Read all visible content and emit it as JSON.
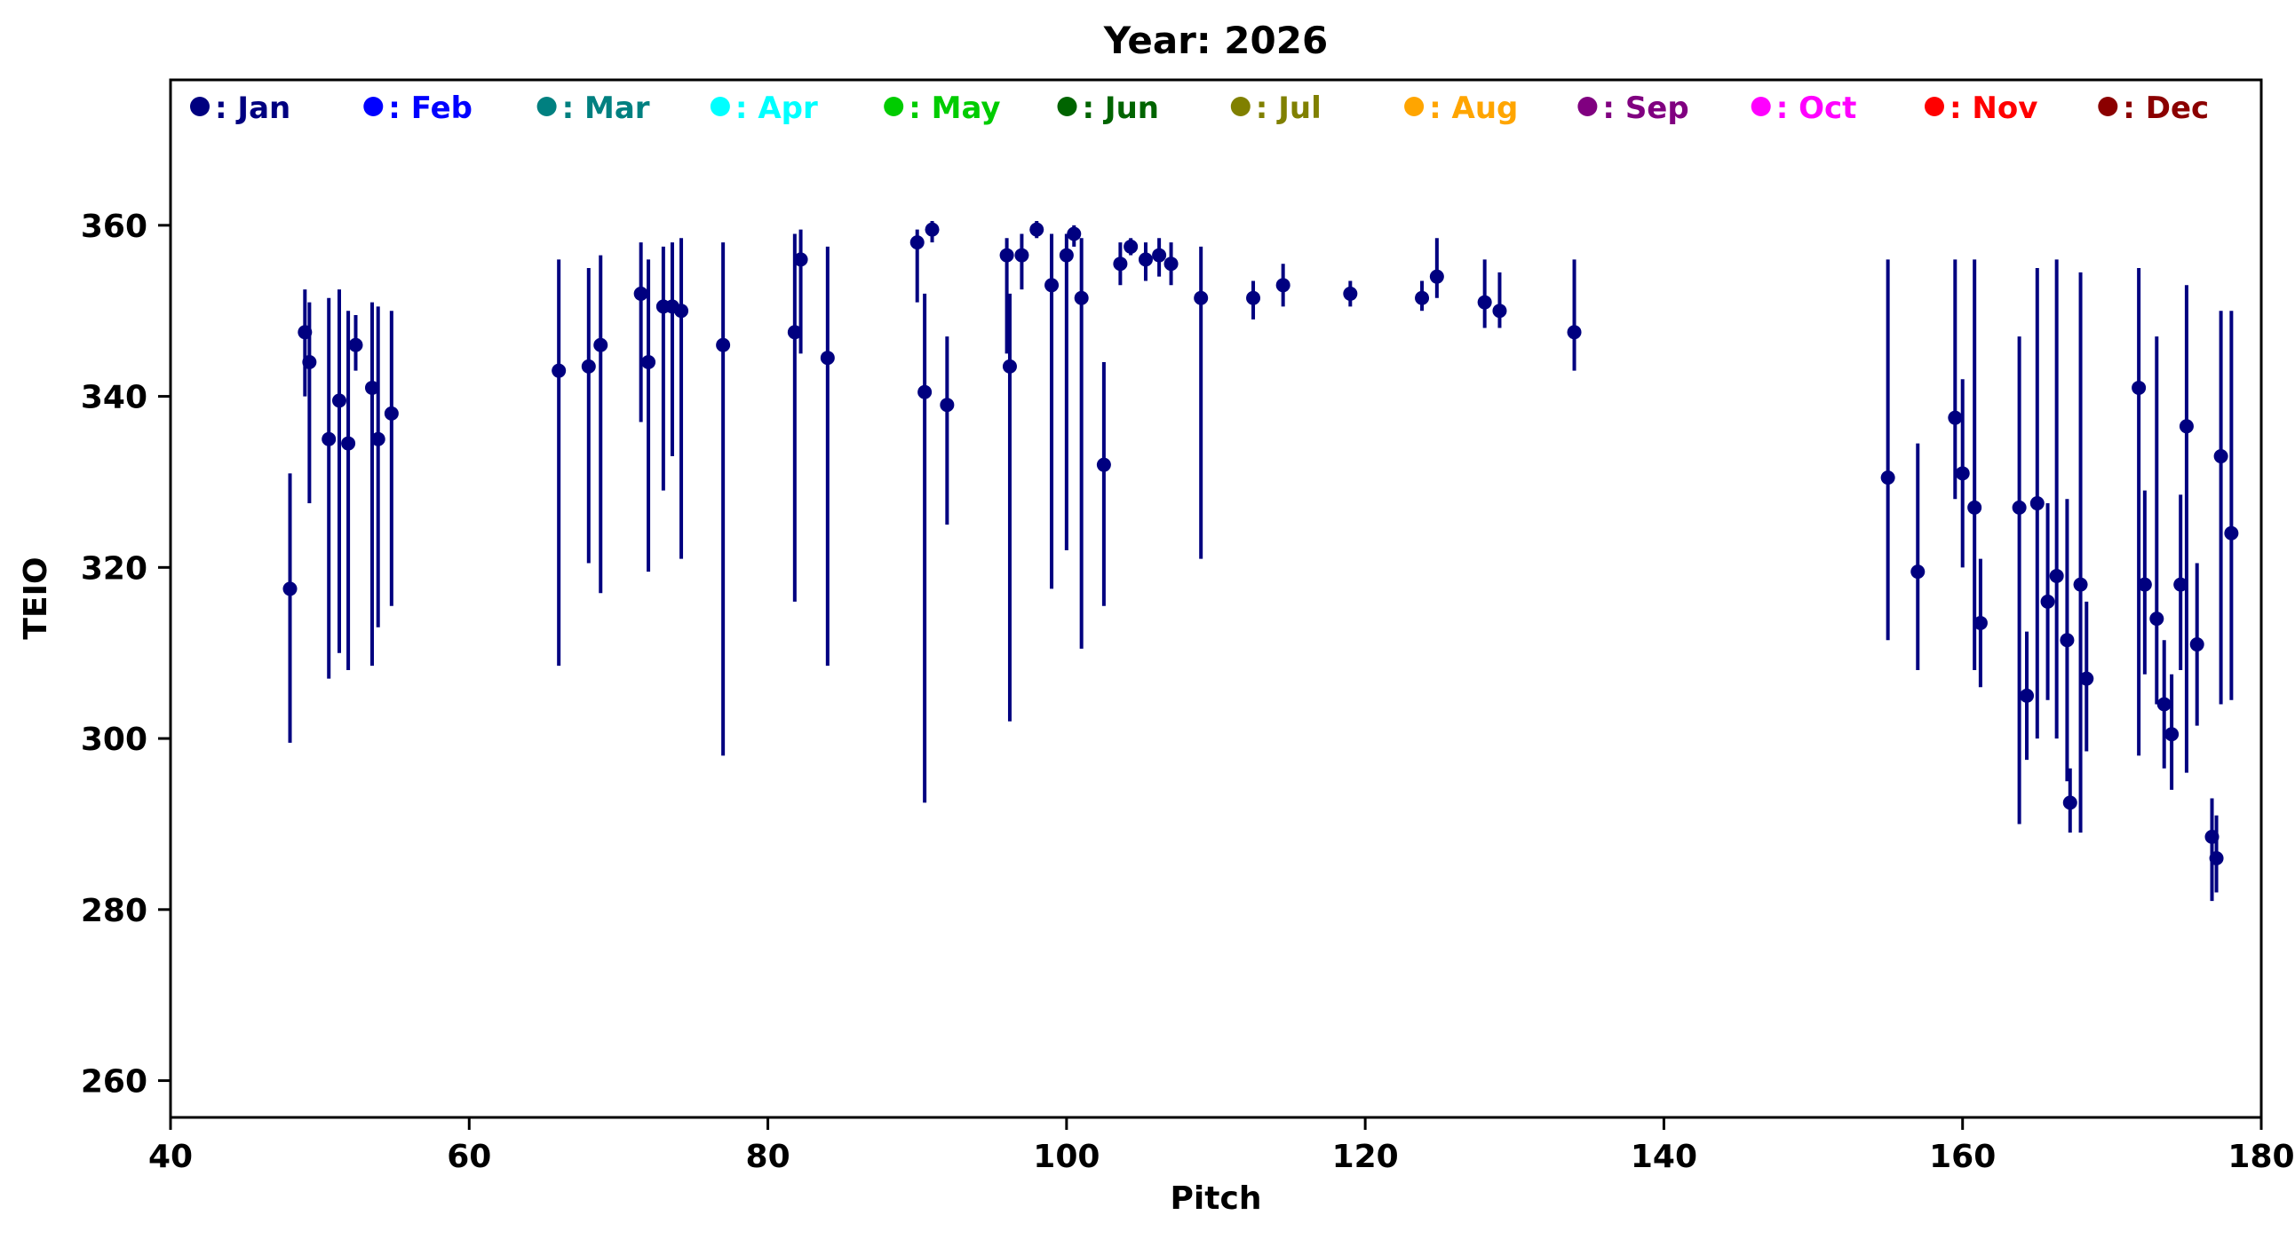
{
  "chart_data": {
    "type": "scatter",
    "title": "Year: 2026",
    "xlabel": "Pitch",
    "ylabel": "TEIO",
    "xlim": [
      40,
      180
    ],
    "ylim": [
      255.7,
      377
    ],
    "xticks": [
      40,
      60,
      80,
      100,
      120,
      140,
      160,
      180
    ],
    "yticks": [
      260,
      280,
      300,
      320,
      340,
      360
    ],
    "grid": false,
    "error_bars": true,
    "marker": "circle",
    "legend": {
      "position": "top-inside-row",
      "entries": [
        {
          "label": "Jan",
          "color": "#000080"
        },
        {
          "label": "Feb",
          "color": "#0000FF"
        },
        {
          "label": "Mar",
          "color": "#008080"
        },
        {
          "label": "Apr",
          "color": "#00FFFF"
        },
        {
          "label": "May",
          "color": "#00CC00"
        },
        {
          "label": "Jun",
          "color": "#006400"
        },
        {
          "label": "Jul",
          "color": "#808000"
        },
        {
          "label": "Aug",
          "color": "#FFA500"
        },
        {
          "label": "Sep",
          "color": "#800080"
        },
        {
          "label": "Oct",
          "color": "#FF00FF"
        },
        {
          "label": "Nov",
          "color": "#FF0000"
        },
        {
          "label": "Dec",
          "color": "#8B0000"
        }
      ]
    },
    "series": [
      {
        "name": "Jan",
        "color": "#000080",
        "points": [
          {
            "x": 48.0,
            "y": 317.5,
            "lo": 299.5,
            "hi": 331.0
          },
          {
            "x": 49.0,
            "y": 347.5,
            "lo": 340.0,
            "hi": 352.5
          },
          {
            "x": 49.3,
            "y": 344.0,
            "lo": 327.5,
            "hi": 351.0
          },
          {
            "x": 50.6,
            "y": 335.0,
            "lo": 307.0,
            "hi": 351.5
          },
          {
            "x": 51.3,
            "y": 339.5,
            "lo": 310.0,
            "hi": 352.5
          },
          {
            "x": 51.9,
            "y": 334.5,
            "lo": 308.0,
            "hi": 350.0
          },
          {
            "x": 52.4,
            "y": 346.0,
            "lo": 343.0,
            "hi": 349.5
          },
          {
            "x": 53.5,
            "y": 341.0,
            "lo": 308.5,
            "hi": 351.0
          },
          {
            "x": 53.9,
            "y": 335.0,
            "lo": 313.0,
            "hi": 350.5
          },
          {
            "x": 54.8,
            "y": 338.0,
            "lo": 315.5,
            "hi": 350.0
          },
          {
            "x": 66.0,
            "y": 343.0,
            "lo": 308.5,
            "hi": 356.0
          },
          {
            "x": 68.0,
            "y": 343.5,
            "lo": 320.5,
            "hi": 355.0
          },
          {
            "x": 68.8,
            "y": 346.0,
            "lo": 317.0,
            "hi": 356.5
          },
          {
            "x": 71.5,
            "y": 352.0,
            "lo": 337.0,
            "hi": 358.0
          },
          {
            "x": 72.0,
            "y": 344.0,
            "lo": 319.5,
            "hi": 356.0
          },
          {
            "x": 73.0,
            "y": 350.5,
            "lo": 329.0,
            "hi": 357.5
          },
          {
            "x": 73.6,
            "y": 350.5,
            "lo": 333.0,
            "hi": 358.0
          },
          {
            "x": 74.2,
            "y": 350.0,
            "lo": 321.0,
            "hi": 358.5
          },
          {
            "x": 77.0,
            "y": 346.0,
            "lo": 298.0,
            "hi": 358.0
          },
          {
            "x": 81.8,
            "y": 347.5,
            "lo": 316.0,
            "hi": 359.0
          },
          {
            "x": 82.2,
            "y": 356.0,
            "lo": 345.0,
            "hi": 359.5
          },
          {
            "x": 84.0,
            "y": 344.5,
            "lo": 308.5,
            "hi": 357.5
          },
          {
            "x": 90.0,
            "y": 358.0,
            "lo": 351.0,
            "hi": 359.5
          },
          {
            "x": 90.5,
            "y": 340.5,
            "lo": 292.5,
            "hi": 352.0
          },
          {
            "x": 91.0,
            "y": 359.5,
            "lo": 358.0,
            "hi": 360.5
          },
          {
            "x": 92.0,
            "y": 339.0,
            "lo": 325.0,
            "hi": 347.0
          },
          {
            "x": 96.0,
            "y": 356.5,
            "lo": 345.0,
            "hi": 358.5
          },
          {
            "x": 96.2,
            "y": 343.5,
            "lo": 302.0,
            "hi": 352.0
          },
          {
            "x": 97.0,
            "y": 356.5,
            "lo": 352.5,
            "hi": 359.0
          },
          {
            "x": 98.0,
            "y": 359.5,
            "lo": 358.5,
            "hi": 360.5
          },
          {
            "x": 99.0,
            "y": 353.0,
            "lo": 317.5,
            "hi": 359.0
          },
          {
            "x": 100.0,
            "y": 356.5,
            "lo": 322.0,
            "hi": 359.0
          },
          {
            "x": 100.5,
            "y": 359.0,
            "lo": 357.5,
            "hi": 360.0
          },
          {
            "x": 101.0,
            "y": 351.5,
            "lo": 310.5,
            "hi": 358.5
          },
          {
            "x": 102.5,
            "y": 332.0,
            "lo": 315.5,
            "hi": 344.0
          },
          {
            "x": 103.6,
            "y": 355.5,
            "lo": 353.0,
            "hi": 358.0
          },
          {
            "x": 104.3,
            "y": 357.5,
            "lo": 356.5,
            "hi": 358.5
          },
          {
            "x": 105.3,
            "y": 356.0,
            "lo": 353.5,
            "hi": 358.0
          },
          {
            "x": 106.2,
            "y": 356.5,
            "lo": 354.0,
            "hi": 358.5
          },
          {
            "x": 107.0,
            "y": 355.5,
            "lo": 353.0,
            "hi": 358.0
          },
          {
            "x": 109.0,
            "y": 351.5,
            "lo": 321.0,
            "hi": 357.5
          },
          {
            "x": 112.5,
            "y": 351.5,
            "lo": 349.0,
            "hi": 353.5
          },
          {
            "x": 114.5,
            "y": 353.0,
            "lo": 350.5,
            "hi": 355.5
          },
          {
            "x": 119.0,
            "y": 352.0,
            "lo": 350.5,
            "hi": 353.5
          },
          {
            "x": 123.8,
            "y": 351.5,
            "lo": 350.0,
            "hi": 353.5
          },
          {
            "x": 124.8,
            "y": 354.0,
            "lo": 351.5,
            "hi": 358.5
          },
          {
            "x": 128.0,
            "y": 351.0,
            "lo": 348.0,
            "hi": 356.0
          },
          {
            "x": 129.0,
            "y": 350.0,
            "lo": 348.0,
            "hi": 354.5
          },
          {
            "x": 134.0,
            "y": 347.5,
            "lo": 343.0,
            "hi": 356.0
          },
          {
            "x": 155.0,
            "y": 330.5,
            "lo": 311.5,
            "hi": 356.0
          },
          {
            "x": 157.0,
            "y": 319.5,
            "lo": 308.0,
            "hi": 334.5
          },
          {
            "x": 159.5,
            "y": 337.5,
            "lo": 328.0,
            "hi": 356.0
          },
          {
            "x": 160.0,
            "y": 331.0,
            "lo": 320.0,
            "hi": 342.0
          },
          {
            "x": 160.8,
            "y": 327.0,
            "lo": 308.0,
            "hi": 356.0
          },
          {
            "x": 161.2,
            "y": 313.5,
            "lo": 306.0,
            "hi": 321.0
          },
          {
            "x": 163.8,
            "y": 327.0,
            "lo": 290.0,
            "hi": 347.0
          },
          {
            "x": 164.3,
            "y": 305.0,
            "lo": 297.5,
            "hi": 312.5
          },
          {
            "x": 165.0,
            "y": 327.5,
            "lo": 300.0,
            "hi": 355.0
          },
          {
            "x": 165.7,
            "y": 316.0,
            "lo": 304.5,
            "hi": 327.5
          },
          {
            "x": 166.3,
            "y": 319.0,
            "lo": 300.0,
            "hi": 356.0
          },
          {
            "x": 167.0,
            "y": 311.5,
            "lo": 295.0,
            "hi": 328.0
          },
          {
            "x": 167.2,
            "y": 292.5,
            "lo": 289.0,
            "hi": 296.5
          },
          {
            "x": 167.9,
            "y": 318.0,
            "lo": 289.0,
            "hi": 354.5
          },
          {
            "x": 168.3,
            "y": 307.0,
            "lo": 298.5,
            "hi": 316.0
          },
          {
            "x": 171.8,
            "y": 341.0,
            "lo": 298.0,
            "hi": 355.0
          },
          {
            "x": 172.2,
            "y": 318.0,
            "lo": 307.5,
            "hi": 329.0
          },
          {
            "x": 173.0,
            "y": 314.0,
            "lo": 304.0,
            "hi": 347.0
          },
          {
            "x": 173.5,
            "y": 304.0,
            "lo": 296.5,
            "hi": 311.5
          },
          {
            "x": 174.0,
            "y": 300.5,
            "lo": 294.0,
            "hi": 307.5
          },
          {
            "x": 174.6,
            "y": 318.0,
            "lo": 308.0,
            "hi": 328.5
          },
          {
            "x": 175.0,
            "y": 336.5,
            "lo": 296.0,
            "hi": 353.0
          },
          {
            "x": 175.7,
            "y": 311.0,
            "lo": 301.5,
            "hi": 320.5
          },
          {
            "x": 176.7,
            "y": 288.5,
            "lo": 281.0,
            "hi": 293.0
          },
          {
            "x": 177.0,
            "y": 286.0,
            "lo": 282.0,
            "hi": 291.0
          },
          {
            "x": 177.3,
            "y": 333.0,
            "lo": 304.0,
            "hi": 350.0
          },
          {
            "x": 178.0,
            "y": 324.0,
            "lo": 304.5,
            "hi": 350.0
          }
        ]
      }
    ]
  }
}
